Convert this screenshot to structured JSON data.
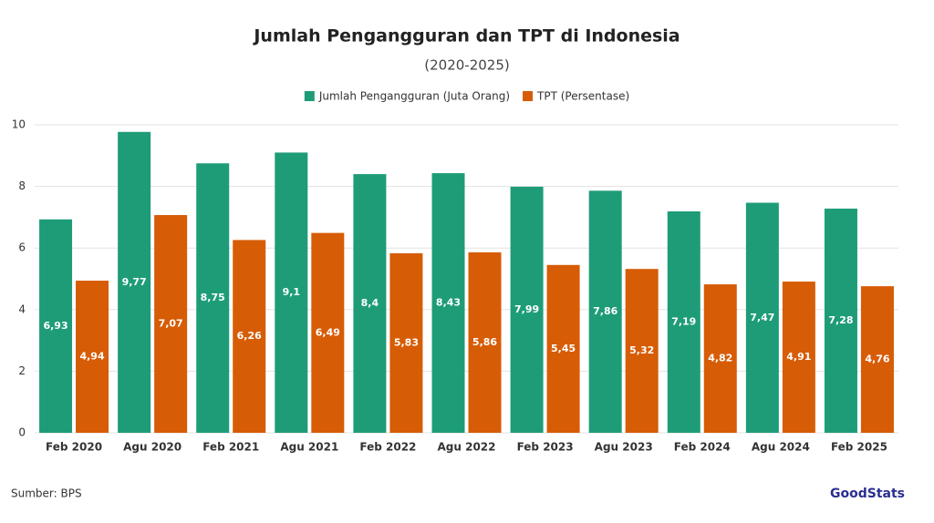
{
  "chart_data": {
    "type": "bar",
    "title": "Jumlah Pengangguran dan TPT di Indonesia",
    "subtitle": "(2020-2025)",
    "categories": [
      "Feb 2020",
      "Agu 2020",
      "Feb 2021",
      "Agu 2021",
      "Feb 2022",
      "Agu 2022",
      "Feb 2023",
      "Agu 2023",
      "Feb 2024",
      "Agu 2024",
      "Feb 2025"
    ],
    "series": [
      {
        "name": "Jumlah Pengangguran (Juta Orang)",
        "color": "#1e9c78",
        "values": [
          6.93,
          9.77,
          8.75,
          9.1,
          8.4,
          8.43,
          7.99,
          7.86,
          7.19,
          7.47,
          7.28
        ],
        "value_labels": [
          "6,93",
          "9,77",
          "8,75",
          "9,1",
          "8,4",
          "8,43",
          "7,99",
          "7,86",
          "7,19",
          "7,47",
          "7,28"
        ]
      },
      {
        "name": "TPT (Persentase)",
        "color": "#d75c06",
        "values": [
          4.94,
          7.07,
          6.26,
          6.49,
          5.83,
          5.86,
          5.45,
          5.32,
          4.82,
          4.91,
          4.76
        ],
        "value_labels": [
          "4,94",
          "7,07",
          "6,26",
          "6,49",
          "5,83",
          "5,86",
          "5,45",
          "5,32",
          "4,82",
          "4,91",
          "4,76"
        ]
      }
    ],
    "ylim": [
      0,
      10
    ],
    "yticks": [
      0,
      2,
      4,
      6,
      8,
      10
    ],
    "grid": true,
    "source": "Sumber: BPS",
    "brand": "GoodStats"
  }
}
